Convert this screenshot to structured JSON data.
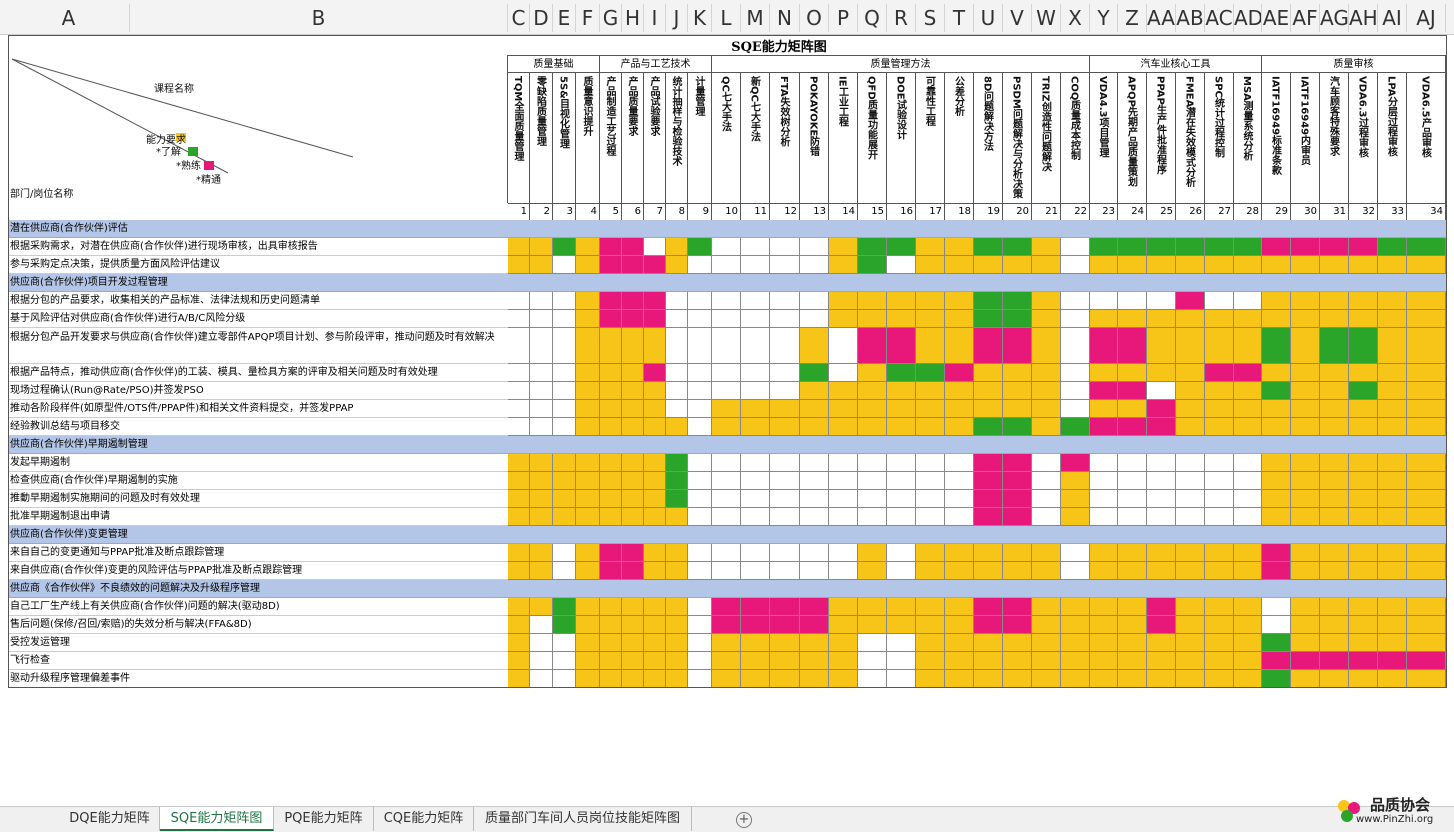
{
  "columns": [
    "A",
    "B",
    "C",
    "D",
    "E",
    "F",
    "G",
    "H",
    "I",
    "J",
    "K",
    "L",
    "M",
    "N",
    "O",
    "P",
    "Q",
    "R",
    "S",
    "T",
    "U",
    "V",
    "W",
    "X",
    "Y",
    "Z",
    "AA",
    "AB",
    "AC",
    "AD",
    "AE",
    "AF",
    "AG",
    "AH",
    "AI",
    "AJ"
  ],
  "title": "SQE能力矩阵图",
  "corner": {
    "course": "课程名称",
    "requirement": "能力要求",
    "level_1": "*了解",
    "level_2": "*熟练",
    "level_3": "*精通",
    "department": "部门/岗位名称"
  },
  "groups": [
    "质量基础",
    "产品与工艺技术",
    "质量管理方法",
    "汽车业核心工具",
    "质量审核"
  ],
  "skills": [
    {
      "name": "TQM全面质量管理",
      "number": 1
    },
    {
      "name": "零缺陷质量管理",
      "number": 2
    },
    {
      "name": "5S&目视化管理",
      "number": 3
    },
    {
      "name": "质量意识提升",
      "number": 4
    },
    {
      "name": "产品制造工艺过程",
      "number": 5
    },
    {
      "name": "产品质量要求",
      "number": 6
    },
    {
      "name": "产品试验要求",
      "number": 7
    },
    {
      "name": "统计抽样与检验技术",
      "number": 8
    },
    {
      "name": "计量管理",
      "number": 9
    },
    {
      "name": "QC七大手法",
      "number": 10
    },
    {
      "name": "新QC七大手法",
      "number": 11
    },
    {
      "name": "FTA失效树分析",
      "number": 12
    },
    {
      "name": "POKAYOKE防错",
      "number": 13
    },
    {
      "name": "IE工业工程",
      "number": 14
    },
    {
      "name": "QFD质量功能展开",
      "number": 15
    },
    {
      "name": "DOE试验设计",
      "number": 16
    },
    {
      "name": "可靠性工程",
      "number": 17
    },
    {
      "name": "公差分析",
      "number": 18
    },
    {
      "name": "8D问题解决方法",
      "number": 19
    },
    {
      "name": "PSDM问题解决与分析决策",
      "number": 20
    },
    {
      "name": "TRIZ创造性问题解决",
      "number": 21
    },
    {
      "name": "COQ质量成本控制",
      "number": 22
    },
    {
      "name": "VDA4.3项目管理",
      "number": 23
    },
    {
      "name": "APQP先期产品质量策划",
      "number": 24
    },
    {
      "name": "PPAP生产件批准程序",
      "number": 25
    },
    {
      "name": "FMEA潜在失效模式分析",
      "number": 26
    },
    {
      "name": "SPC统计过程控制",
      "number": 27
    },
    {
      "name": "MSA测量系统分析",
      "number": 28
    },
    {
      "name": "IATF16949标准条款",
      "number": 29
    },
    {
      "name": "IATF16949内审员",
      "number": 30
    },
    {
      "name": "汽车顾客特殊要求",
      "number": 31
    },
    {
      "name": "VDA6.3过程审核",
      "number": 32
    },
    {
      "name": "LPA分层过程审核",
      "number": 33
    },
    {
      "name": "VDA6.5产品审核",
      "number": 34
    }
  ],
  "rows": [
    "潜在供应商(合作伙伴)评估",
    "根据采购需求，对潜在供应商(合作伙伴)进行现场审核，出具审核报告",
    "参与采购定点决策，提供质量方面风险评估建议",
    "供应商(合作伙伴)项目开发过程管理",
    "根据分包的产品要求，收集相关的产品标准、法律法规和历史问题清单",
    "基于风险评估对供应商(合作伙伴)进行A/B/C风险分级",
    "根据分包产品开发要求与供应商(合作伙伴)建立零部件APQP项目计划、参与阶段评审，推动问题及时有效解决",
    "根据产品特点，推动供应商(合作伙伴)的工装、模具、量检具方案的评审及相关问题及时有效处理",
    "现场过程确认(Run@Rate/PSO)并签发PSO",
    "推动各阶段样件(如原型件/OTS件/PPAP件)和相关文件资料提交，并签发PPAP",
    "经验教训总结与项目移交",
    "供应商(合作伙伴)早期遏制管理",
    "发起早期遏制",
    "检查供应商(合作伙伴)早期遏制的实施",
    "推動早期遏制实施期间的问题及时有效处理",
    "批准早期遏制退出申请",
    "供应商(合作伙伴)变更管理",
    "来自自己的变更通知与PPAP批准及断点跟踪管理",
    "来自供应商(合作伙伴)变更的风险评估与PPAP批准及断点跟踪管理",
    "供应商《合作伙伴》不良绩效的问题解决及升级程序管理",
    "自己工厂生产线上有关供应商(合作伙伴)问题的解决(驱动8D)",
    "售后问题(保修/召回/索赔)的失效分析与解决(FFA&8D)",
    "受控发运管理",
    "飞行检查",
    "驱动升级程序管理偏差事件"
  ],
  "tabs": [
    "DQE能力矩阵",
    "SQE能力矩阵图",
    "PQE能力矩阵",
    "CQE能力矩阵",
    "质量部门车间人员岗位技能矩阵图"
  ],
  "logo": {
    "name": "品质协会",
    "url": "www.PinZhi.org"
  }
}
